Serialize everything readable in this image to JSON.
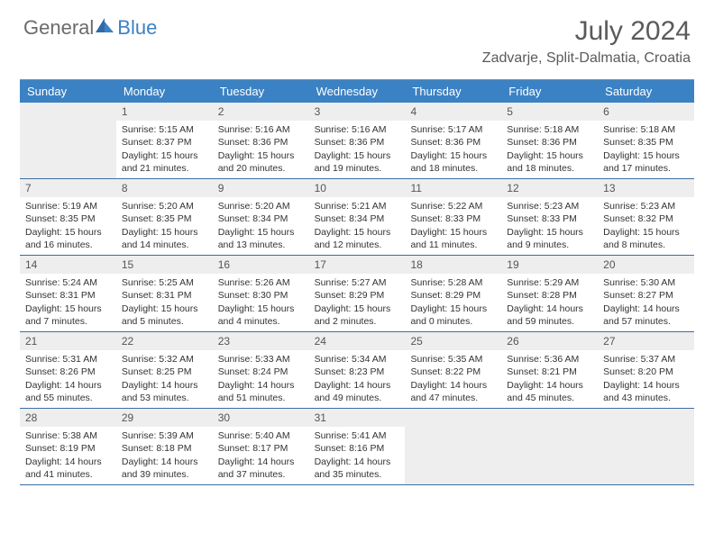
{
  "brand": {
    "part1": "General",
    "part2": "Blue"
  },
  "title": "July 2024",
  "location": "Zadvarje, Split-Dalmatia, Croatia",
  "theme": {
    "header_bg": "#3b82c4",
    "header_fg": "#ffffff",
    "rule": "#3b6fa0",
    "empty_bg": "#eeeeee",
    "daynum_bg": "#eeeeee",
    "text": "#333333",
    "title_color": "#5a5a5a"
  },
  "dow": [
    "Sunday",
    "Monday",
    "Tuesday",
    "Wednesday",
    "Thursday",
    "Friday",
    "Saturday"
  ],
  "weeks": [
    [
      {
        "blank": true
      },
      {
        "n": "1",
        "sunrise": "5:15 AM",
        "sunset": "8:37 PM",
        "dl1": "Daylight: 15 hours",
        "dl2": "and 21 minutes."
      },
      {
        "n": "2",
        "sunrise": "5:16 AM",
        "sunset": "8:36 PM",
        "dl1": "Daylight: 15 hours",
        "dl2": "and 20 minutes."
      },
      {
        "n": "3",
        "sunrise": "5:16 AM",
        "sunset": "8:36 PM",
        "dl1": "Daylight: 15 hours",
        "dl2": "and 19 minutes."
      },
      {
        "n": "4",
        "sunrise": "5:17 AM",
        "sunset": "8:36 PM",
        "dl1": "Daylight: 15 hours",
        "dl2": "and 18 minutes."
      },
      {
        "n": "5",
        "sunrise": "5:18 AM",
        "sunset": "8:36 PM",
        "dl1": "Daylight: 15 hours",
        "dl2": "and 18 minutes."
      },
      {
        "n": "6",
        "sunrise": "5:18 AM",
        "sunset": "8:35 PM",
        "dl1": "Daylight: 15 hours",
        "dl2": "and 17 minutes."
      }
    ],
    [
      {
        "n": "7",
        "sunrise": "5:19 AM",
        "sunset": "8:35 PM",
        "dl1": "Daylight: 15 hours",
        "dl2": "and 16 minutes."
      },
      {
        "n": "8",
        "sunrise": "5:20 AM",
        "sunset": "8:35 PM",
        "dl1": "Daylight: 15 hours",
        "dl2": "and 14 minutes."
      },
      {
        "n": "9",
        "sunrise": "5:20 AM",
        "sunset": "8:34 PM",
        "dl1": "Daylight: 15 hours",
        "dl2": "and 13 minutes."
      },
      {
        "n": "10",
        "sunrise": "5:21 AM",
        "sunset": "8:34 PM",
        "dl1": "Daylight: 15 hours",
        "dl2": "and 12 minutes."
      },
      {
        "n": "11",
        "sunrise": "5:22 AM",
        "sunset": "8:33 PM",
        "dl1": "Daylight: 15 hours",
        "dl2": "and 11 minutes."
      },
      {
        "n": "12",
        "sunrise": "5:23 AM",
        "sunset": "8:33 PM",
        "dl1": "Daylight: 15 hours",
        "dl2": "and 9 minutes."
      },
      {
        "n": "13",
        "sunrise": "5:23 AM",
        "sunset": "8:32 PM",
        "dl1": "Daylight: 15 hours",
        "dl2": "and 8 minutes."
      }
    ],
    [
      {
        "n": "14",
        "sunrise": "5:24 AM",
        "sunset": "8:31 PM",
        "dl1": "Daylight: 15 hours",
        "dl2": "and 7 minutes."
      },
      {
        "n": "15",
        "sunrise": "5:25 AM",
        "sunset": "8:31 PM",
        "dl1": "Daylight: 15 hours",
        "dl2": "and 5 minutes."
      },
      {
        "n": "16",
        "sunrise": "5:26 AM",
        "sunset": "8:30 PM",
        "dl1": "Daylight: 15 hours",
        "dl2": "and 4 minutes."
      },
      {
        "n": "17",
        "sunrise": "5:27 AM",
        "sunset": "8:29 PM",
        "dl1": "Daylight: 15 hours",
        "dl2": "and 2 minutes."
      },
      {
        "n": "18",
        "sunrise": "5:28 AM",
        "sunset": "8:29 PM",
        "dl1": "Daylight: 15 hours",
        "dl2": "and 0 minutes."
      },
      {
        "n": "19",
        "sunrise": "5:29 AM",
        "sunset": "8:28 PM",
        "dl1": "Daylight: 14 hours",
        "dl2": "and 59 minutes."
      },
      {
        "n": "20",
        "sunrise": "5:30 AM",
        "sunset": "8:27 PM",
        "dl1": "Daylight: 14 hours",
        "dl2": "and 57 minutes."
      }
    ],
    [
      {
        "n": "21",
        "sunrise": "5:31 AM",
        "sunset": "8:26 PM",
        "dl1": "Daylight: 14 hours",
        "dl2": "and 55 minutes."
      },
      {
        "n": "22",
        "sunrise": "5:32 AM",
        "sunset": "8:25 PM",
        "dl1": "Daylight: 14 hours",
        "dl2": "and 53 minutes."
      },
      {
        "n": "23",
        "sunrise": "5:33 AM",
        "sunset": "8:24 PM",
        "dl1": "Daylight: 14 hours",
        "dl2": "and 51 minutes."
      },
      {
        "n": "24",
        "sunrise": "5:34 AM",
        "sunset": "8:23 PM",
        "dl1": "Daylight: 14 hours",
        "dl2": "and 49 minutes."
      },
      {
        "n": "25",
        "sunrise": "5:35 AM",
        "sunset": "8:22 PM",
        "dl1": "Daylight: 14 hours",
        "dl2": "and 47 minutes."
      },
      {
        "n": "26",
        "sunrise": "5:36 AM",
        "sunset": "8:21 PM",
        "dl1": "Daylight: 14 hours",
        "dl2": "and 45 minutes."
      },
      {
        "n": "27",
        "sunrise": "5:37 AM",
        "sunset": "8:20 PM",
        "dl1": "Daylight: 14 hours",
        "dl2": "and 43 minutes."
      }
    ],
    [
      {
        "n": "28",
        "sunrise": "5:38 AM",
        "sunset": "8:19 PM",
        "dl1": "Daylight: 14 hours",
        "dl2": "and 41 minutes."
      },
      {
        "n": "29",
        "sunrise": "5:39 AM",
        "sunset": "8:18 PM",
        "dl1": "Daylight: 14 hours",
        "dl2": "and 39 minutes."
      },
      {
        "n": "30",
        "sunrise": "5:40 AM",
        "sunset": "8:17 PM",
        "dl1": "Daylight: 14 hours",
        "dl2": "and 37 minutes."
      },
      {
        "n": "31",
        "sunrise": "5:41 AM",
        "sunset": "8:16 PM",
        "dl1": "Daylight: 14 hours",
        "dl2": "and 35 minutes."
      },
      {
        "blank": true
      },
      {
        "blank": true
      },
      {
        "blank": true
      }
    ]
  ]
}
